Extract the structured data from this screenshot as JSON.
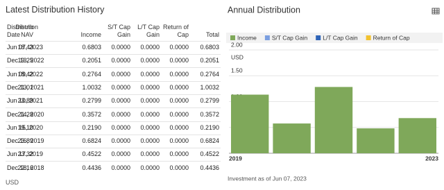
{
  "table": {
    "title": "Latest Distribution History",
    "columns": [
      "Distribution\nDate",
      "Distrib\nNAV",
      "Income",
      "S/T Cap\nGain",
      "L/T Cap\nGain",
      "Return of\nCap",
      "Total"
    ],
    "rows": [
      [
        "Jun 07, 2023",
        "18.43",
        "0.6803",
        "0.0000",
        "0.0000",
        "0.0000",
        "0.6803"
      ],
      [
        "Dec 13, 2022",
        "19.25",
        "0.2051",
        "0.0000",
        "0.0000",
        "0.0000",
        "0.2051"
      ],
      [
        "Jun 09, 2022",
        "18.42",
        "0.2764",
        "0.0000",
        "0.0000",
        "0.0000",
        "0.2764"
      ],
      [
        "Dec 13, 2021",
        "21.01",
        "1.0032",
        "0.0000",
        "0.0000",
        "0.0000",
        "1.0032"
      ],
      [
        "Jun 10, 2021",
        "23.89",
        "0.2799",
        "0.0000",
        "0.0000",
        "0.0000",
        "0.2799"
      ],
      [
        "Dec 14, 2020",
        "21.28",
        "0.3572",
        "0.0000",
        "0.0000",
        "0.0000",
        "0.3572"
      ],
      [
        "Jun 15, 2020",
        "19.10",
        "0.2190",
        "0.0000",
        "0.0000",
        "0.0000",
        "0.2190"
      ],
      [
        "Dec 16, 2019",
        "23.89",
        "0.6824",
        "0.0000",
        "0.0000",
        "0.0000",
        "0.6824"
      ],
      [
        "Jun 17, 2019",
        "23.32",
        "0.4522",
        "0.0000",
        "0.0000",
        "0.0000",
        "0.4522"
      ],
      [
        "Dec 18, 2018",
        "22.16",
        "0.4436",
        "0.0000",
        "0.0000",
        "0.0000",
        "0.4436"
      ]
    ],
    "footnote": "USD"
  },
  "chart_data": {
    "type": "stacked_bar",
    "title": "Annual Distribution",
    "y_unit": "USD",
    "categories": [
      "2019",
      null,
      null,
      null,
      "2023"
    ],
    "series": [
      {
        "name": "Income",
        "color": "#7fa85a",
        "values": [
          1.1346,
          0.5762,
          1.2831,
          0.4815,
          0.6803
        ]
      },
      {
        "name": "S/T Cap Gain",
        "color": "#7b9fe0",
        "values": [
          0,
          0,
          0,
          0,
          0
        ]
      },
      {
        "name": "L/T Cap Gain",
        "color": "#2e64b8",
        "values": [
          0,
          0,
          0,
          0,
          0
        ]
      },
      {
        "name": "Return of Cap",
        "color": "#f2c230",
        "values": [
          0,
          0,
          0,
          0,
          0
        ]
      }
    ],
    "ylim": [
      0,
      2
    ],
    "yticks": [
      {
        "value": 0,
        "label": "0.00"
      },
      {
        "value": 0.5,
        "label": "0.50"
      },
      {
        "value": 1,
        "label": "1.00"
      },
      {
        "value": 1.5,
        "label": "1.50"
      },
      {
        "value": 2,
        "label": "2.00"
      }
    ],
    "grid": true,
    "footnote": "Investment as of Jun 07, 2023"
  }
}
